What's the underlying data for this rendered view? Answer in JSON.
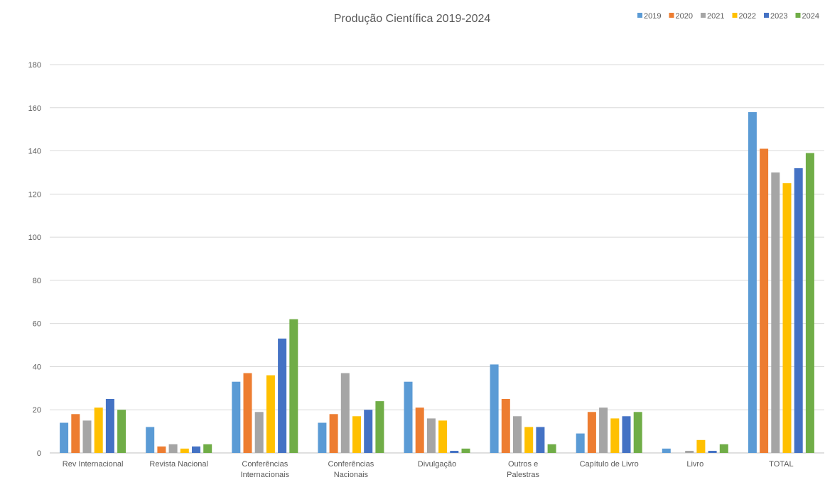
{
  "chart_data": {
    "type": "bar",
    "title": "Produção Científica 2019-2024",
    "xlabel": "",
    "ylabel": "",
    "ylim": [
      0,
      180
    ],
    "yticks": [
      0,
      20,
      40,
      60,
      80,
      100,
      120,
      140,
      160,
      180
    ],
    "grid": true,
    "legend_position": "top-right",
    "categories": [
      "Rev Internacional",
      "Revista Nacional",
      "Conferências Internacionais",
      "Conferências Nacionais",
      "Divulgação",
      "Outros e Palestras",
      "Capítulo de Livro",
      "Livro",
      "TOTAL"
    ],
    "series": [
      {
        "name": "2019",
        "color": "#5B9BD5",
        "values": [
          14,
          12,
          33,
          14,
          33,
          41,
          9,
          2,
          158
        ]
      },
      {
        "name": "2020",
        "color": "#ED7D31",
        "values": [
          18,
          3,
          37,
          18,
          21,
          25,
          19,
          0,
          141
        ]
      },
      {
        "name": "2021",
        "color": "#A5A5A5",
        "values": [
          15,
          4,
          19,
          37,
          16,
          17,
          21,
          1,
          130
        ]
      },
      {
        "name": "2022",
        "color": "#FFC000",
        "values": [
          21,
          2,
          36,
          17,
          15,
          12,
          16,
          6,
          125
        ]
      },
      {
        "name": "2023",
        "color": "#4472C4",
        "values": [
          25,
          3,
          53,
          20,
          1,
          12,
          17,
          1,
          132
        ]
      },
      {
        "name": "2024",
        "color": "#70AD47",
        "values": [
          20,
          4,
          62,
          24,
          2,
          4,
          19,
          4,
          139
        ]
      }
    ]
  }
}
